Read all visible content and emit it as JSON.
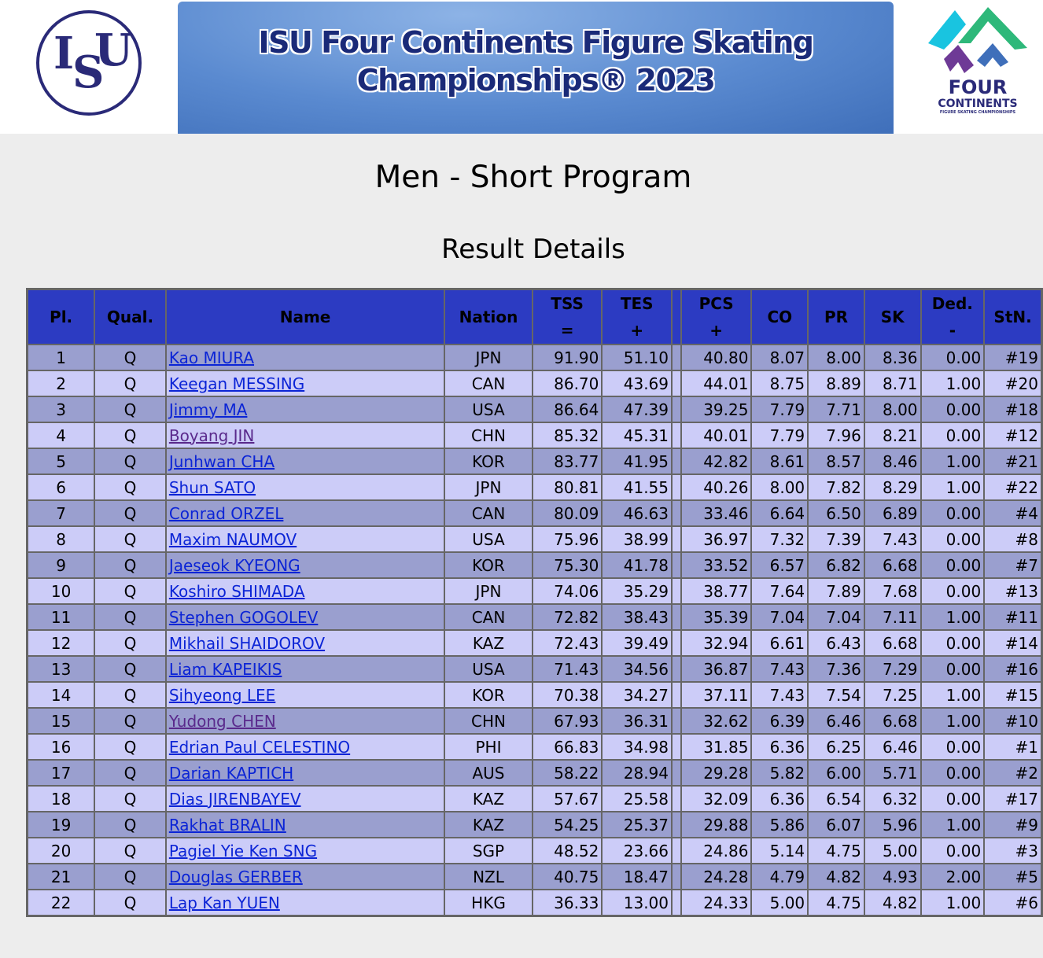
{
  "banner": {
    "isu_logo_text": "ISU",
    "title_line1": "ISU Four Continents Figure Skating",
    "title_line2": "Championships® 2023",
    "four_continents_logo": {
      "line1": "FOUR",
      "line2": "CONTINENTS",
      "line3": "FIGURE SKATING CHAMPIONSHIPS"
    }
  },
  "page_title": "Men - Short Program",
  "section_title": "Result Details",
  "table": {
    "headers": {
      "pl": "Pl.",
      "qual": "Qual.",
      "name": "Name",
      "nation": "Nation",
      "tss": "TSS",
      "tss_sym": "=",
      "tes": "TES",
      "tes_sym": "+",
      "pcs": "PCS",
      "pcs_sym": "+",
      "co": "CO",
      "pr": "PR",
      "sk": "SK",
      "ded": "Ded.",
      "ded_sym": "-",
      "stn": "StN."
    },
    "rows": [
      [
        "1",
        "Q",
        "Kao MIURA",
        "JPN",
        "91.90",
        "51.10",
        "40.80",
        "8.07",
        "8.00",
        "8.36",
        "0.00",
        "#19"
      ],
      [
        "2",
        "Q",
        "Keegan MESSING",
        "CAN",
        "86.70",
        "43.69",
        "44.01",
        "8.75",
        "8.89",
        "8.71",
        "1.00",
        "#20"
      ],
      [
        "3",
        "Q",
        "Jimmy MA",
        "USA",
        "86.64",
        "47.39",
        "39.25",
        "7.79",
        "7.71",
        "8.00",
        "0.00",
        "#18"
      ],
      [
        "4",
        "Q",
        "Boyang JIN",
        "CHN",
        "85.32",
        "45.31",
        "40.01",
        "7.79",
        "7.96",
        "8.21",
        "0.00",
        "#12"
      ],
      [
        "5",
        "Q",
        "Junhwan CHA",
        "KOR",
        "83.77",
        "41.95",
        "42.82",
        "8.61",
        "8.57",
        "8.46",
        "1.00",
        "#21"
      ],
      [
        "6",
        "Q",
        "Shun SATO",
        "JPN",
        "80.81",
        "41.55",
        "40.26",
        "8.00",
        "7.82",
        "8.29",
        "1.00",
        "#22"
      ],
      [
        "7",
        "Q",
        "Conrad ORZEL",
        "CAN",
        "80.09",
        "46.63",
        "33.46",
        "6.64",
        "6.50",
        "6.89",
        "0.00",
        "#4"
      ],
      [
        "8",
        "Q",
        "Maxim NAUMOV",
        "USA",
        "75.96",
        "38.99",
        "36.97",
        "7.32",
        "7.39",
        "7.43",
        "0.00",
        "#8"
      ],
      [
        "9",
        "Q",
        "Jaeseok KYEONG",
        "KOR",
        "75.30",
        "41.78",
        "33.52",
        "6.57",
        "6.82",
        "6.68",
        "0.00",
        "#7"
      ],
      [
        "10",
        "Q",
        "Koshiro SHIMADA",
        "JPN",
        "74.06",
        "35.29",
        "38.77",
        "7.64",
        "7.89",
        "7.68",
        "0.00",
        "#13"
      ],
      [
        "11",
        "Q",
        "Stephen GOGOLEV",
        "CAN",
        "72.82",
        "38.43",
        "35.39",
        "7.04",
        "7.04",
        "7.11",
        "1.00",
        "#11"
      ],
      [
        "12",
        "Q",
        "Mikhail SHAIDOROV",
        "KAZ",
        "72.43",
        "39.49",
        "32.94",
        "6.61",
        "6.43",
        "6.68",
        "0.00",
        "#14"
      ],
      [
        "13",
        "Q",
        "Liam KAPEIKIS",
        "USA",
        "71.43",
        "34.56",
        "36.87",
        "7.43",
        "7.36",
        "7.29",
        "0.00",
        "#16"
      ],
      [
        "14",
        "Q",
        "Sihyeong LEE",
        "KOR",
        "70.38",
        "34.27",
        "37.11",
        "7.43",
        "7.54",
        "7.25",
        "1.00",
        "#15"
      ],
      [
        "15",
        "Q",
        "Yudong CHEN",
        "CHN",
        "67.93",
        "36.31",
        "32.62",
        "6.39",
        "6.46",
        "6.68",
        "1.00",
        "#10"
      ],
      [
        "16",
        "Q",
        "Edrian Paul CELESTINO",
        "PHI",
        "66.83",
        "34.98",
        "31.85",
        "6.36",
        "6.25",
        "6.46",
        "0.00",
        "#1"
      ],
      [
        "17",
        "Q",
        "Darian KAPTICH",
        "AUS",
        "58.22",
        "28.94",
        "29.28",
        "5.82",
        "6.00",
        "5.71",
        "0.00",
        "#2"
      ],
      [
        "18",
        "Q",
        "Dias JIRENBAYEV",
        "KAZ",
        "57.67",
        "25.58",
        "32.09",
        "6.36",
        "6.54",
        "6.32",
        "0.00",
        "#17"
      ],
      [
        "19",
        "Q",
        "Rakhat BRALIN",
        "KAZ",
        "54.25",
        "25.37",
        "29.88",
        "5.86",
        "6.07",
        "5.96",
        "1.00",
        "#9"
      ],
      [
        "20",
        "Q",
        "Pagiel Yie Ken SNG",
        "SGP",
        "48.52",
        "23.66",
        "24.86",
        "5.14",
        "4.75",
        "5.00",
        "0.00",
        "#3"
      ],
      [
        "21",
        "Q",
        "Douglas GERBER",
        "NZL",
        "40.75",
        "18.47",
        "24.28",
        "4.79",
        "4.82",
        "4.93",
        "2.00",
        "#5"
      ],
      [
        "22",
        "Q",
        "Lap Kan YUEN",
        "HKG",
        "36.33",
        "13.00",
        "24.33",
        "5.00",
        "4.75",
        "4.82",
        "1.00",
        "#6"
      ]
    ],
    "visited_links": [
      "Boyang JIN",
      "Yudong CHEN"
    ],
    "colors": {
      "header": "#2c3bc2",
      "row_odd": "#9a9fcf",
      "row_even": "#ccccf8",
      "link": "#0b24d6",
      "visited": "#5a2a8c"
    }
  }
}
